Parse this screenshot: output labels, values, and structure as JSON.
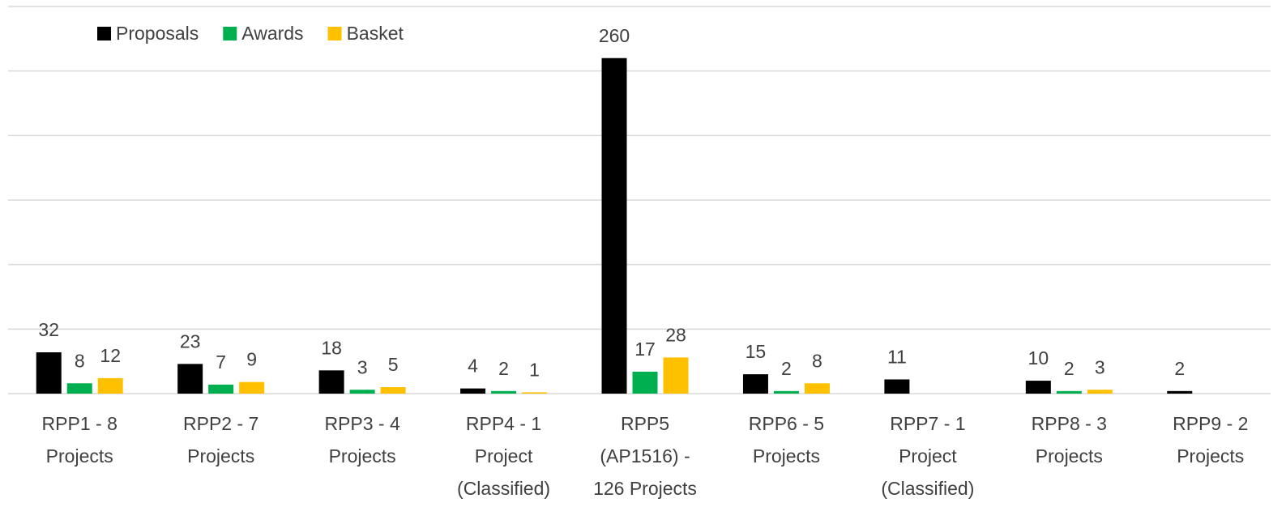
{
  "chart_data": {
    "type": "bar",
    "categories": [
      [
        "RPP1 - 8",
        "Projects"
      ],
      [
        "RPP2 - 7",
        "Projects"
      ],
      [
        "RPP3 - 4",
        "Projects"
      ],
      [
        "RPP4 - 1",
        "Project",
        "(Classified)"
      ],
      [
        "RPP5",
        "(AP1516) -",
        "126 Projects"
      ],
      [
        "RPP6 - 5",
        "Projects"
      ],
      [
        "RPP7 - 1",
        "Project",
        "(Classified)"
      ],
      [
        "RPP8 - 3",
        "Projects"
      ],
      [
        "RPP9 - 2",
        "Projects"
      ]
    ],
    "series": [
      {
        "name": "Proposals",
        "color": "#000000",
        "values": [
          32,
          23,
          18,
          4,
          260,
          15,
          11,
          10,
          2
        ]
      },
      {
        "name": "Awards",
        "color": "#00b050",
        "values": [
          8,
          7,
          3,
          2,
          17,
          2,
          null,
          2,
          null
        ]
      },
      {
        "name": "Basket",
        "color": "#ffc000",
        "values": [
          12,
          9,
          5,
          1,
          28,
          8,
          null,
          3,
          null
        ]
      }
    ],
    "ylim": [
      0,
      300
    ],
    "yticks": [
      0,
      50,
      100,
      150,
      200,
      250,
      300
    ],
    "grid": true,
    "legend": "top-left"
  }
}
